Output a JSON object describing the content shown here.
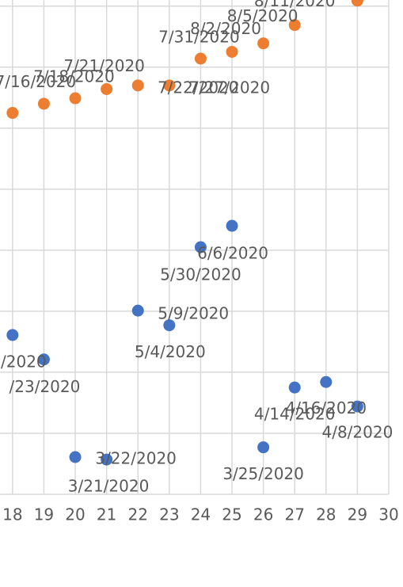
{
  "chart_data": {
    "type": "scatter",
    "xlim": [
      17.6,
      30
    ],
    "xticks": [
      18,
      19,
      20,
      21,
      22,
      23,
      24,
      25,
      26,
      27,
      28,
      29,
      30
    ],
    "ylim": [
      0,
      8.1
    ],
    "yticks": [
      0,
      1,
      2,
      3,
      4,
      5,
      6,
      7,
      8
    ],
    "grid": true,
    "series": [
      {
        "color": "#ed7d31",
        "x": [
          18,
          19,
          20,
          21,
          22,
          23,
          24,
          25,
          26,
          27,
          29
        ],
        "values": [
          6.25,
          6.4,
          6.49,
          6.64,
          6.7,
          6.7,
          7.14,
          7.25,
          7.39,
          7.69,
          8.09
        ],
        "point_labels": [
          "7/16/2020",
          "7/18/2020",
          null,
          "7/21/2020",
          "7/22/2020",
          "7/27/2020",
          "7/31/2020",
          "8/2/2020",
          "8/5/2020",
          "8/11/2020",
          null
        ]
      },
      {
        "color": "#4472c4",
        "x": [
          18,
          19,
          20,
          21,
          22,
          23,
          24,
          25,
          26,
          27,
          28,
          29
        ],
        "values": [
          2.61,
          2.21,
          0.61,
          0.57,
          3.01,
          2.77,
          4.05,
          4.4,
          0.77,
          1.75,
          1.84,
          1.44
        ],
        "point_labels": [
          "/2020",
          "/23/2020",
          "3/21/2020",
          "3/22/2020",
          "5/9/2020",
          "5/4/2020",
          "5/30/2020",
          "6/6/2020",
          "3/25/2020",
          "4/14/2020",
          "4/16/2020",
          "4/8/2020"
        ]
      }
    ]
  }
}
